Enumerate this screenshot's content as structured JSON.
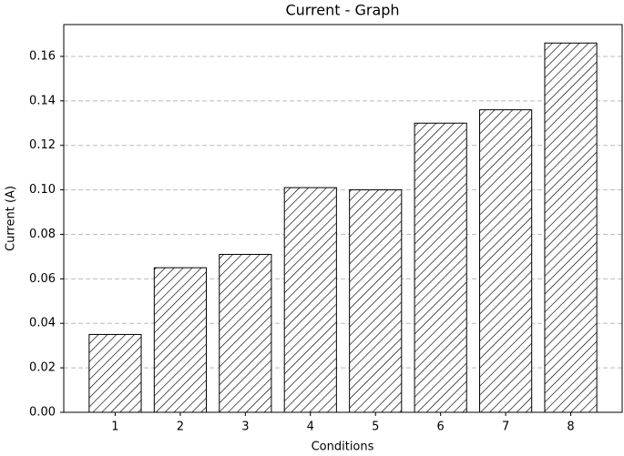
{
  "chart_data": {
    "type": "bar",
    "title": "Current - Graph",
    "x_label": "Conditions",
    "y_label": "Current (A)",
    "x": [
      1,
      2,
      3,
      4,
      5,
      6,
      7,
      8
    ],
    "values": [
      0.035,
      0.065,
      0.071,
      0.101,
      0.1,
      0.13,
      0.136,
      0.166
    ],
    "color": "#ffffff",
    "edge_color": "#000000",
    "hatch": "////",
    "xlim": [
      0.21,
      8.79
    ],
    "xticks": [
      1,
      2,
      3,
      4,
      5,
      6,
      7,
      8
    ],
    "ylim": [
      0,
      0.1743
    ],
    "yticks": [
      {
        "value": 0,
        "label": "0.00"
      },
      {
        "value": 0.02,
        "label": "0.02"
      },
      {
        "value": 0.04,
        "label": "0.04"
      },
      {
        "value": 0.06,
        "label": "0.06"
      },
      {
        "value": 0.08,
        "label": "0.08"
      },
      {
        "value": 0.1,
        "label": "0.10"
      },
      {
        "value": 0.12,
        "label": "0.12"
      },
      {
        "value": 0.14,
        "label": "0.14"
      },
      {
        "value": 0.16,
        "label": "0.16"
      }
    ],
    "grid": "y"
  }
}
